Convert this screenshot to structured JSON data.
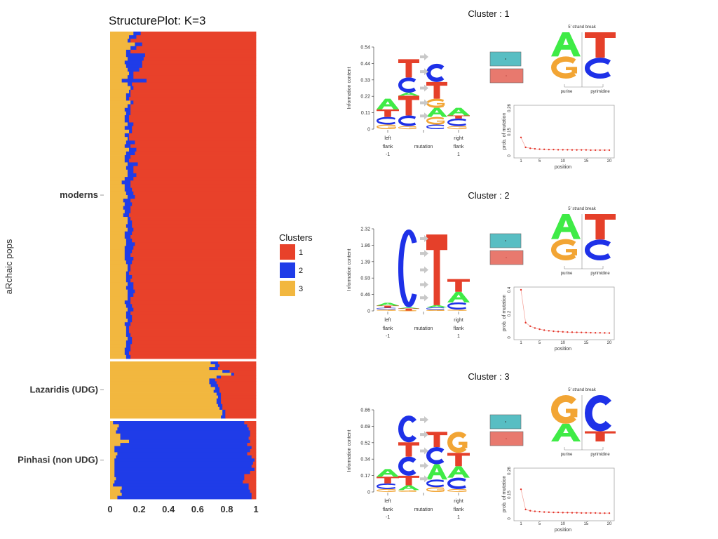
{
  "colors": {
    "c1": "#E8412A",
    "c2": "#1F3CE8",
    "c3": "#F2B73F",
    "teal": "#58BEC3",
    "salmon": "#E8796E",
    "A": "#3FEB46",
    "C": "#1E31E8",
    "G": "#F2A534",
    "T": "#E5402A"
  },
  "structure_plot": {
    "title": "StructurePlot: K=3",
    "y_axis_label": "aRchaic pops",
    "x_ticks": [
      "0",
      "0.2",
      "0.4",
      "0.6",
      "0.8",
      "1"
    ],
    "groups": [
      "moderns",
      "Lazaridis (UDG)",
      "Pinhasi (non UDG)"
    ],
    "legend_title": "Clusters",
    "legend_items": [
      "1",
      "2",
      "3"
    ]
  },
  "chart_data": {
    "type": "stacked_bar",
    "title": "StructurePlot: K=3",
    "ylabel": "aRchaic pops",
    "xlim": [
      0,
      1
    ],
    "series_names": [
      "1",
      "2",
      "3"
    ],
    "groups": [
      {
        "name": "moderns",
        "samples": [
          [
            0.79,
            0.05,
            0.16
          ],
          [
            0.82,
            0.05,
            0.13
          ],
          [
            0.86,
            0.02,
            0.12
          ],
          [
            0.78,
            0.05,
            0.17
          ],
          [
            0.82,
            0.04,
            0.14
          ],
          [
            0.86,
            0.03,
            0.11
          ],
          [
            0.76,
            0.13,
            0.11
          ],
          [
            0.77,
            0.11,
            0.12
          ],
          [
            0.78,
            0.12,
            0.1
          ],
          [
            0.78,
            0.11,
            0.11
          ],
          [
            0.8,
            0.08,
            0.12
          ],
          [
            0.84,
            0.03,
            0.13
          ],
          [
            0.84,
            0.04,
            0.12
          ],
          [
            0.75,
            0.17,
            0.08
          ],
          [
            0.85,
            0.03,
            0.12
          ],
          [
            0.84,
            0.02,
            0.14
          ],
          [
            0.86,
            0.01,
            0.13
          ],
          [
            0.86,
            0.03,
            0.11
          ],
          [
            0.87,
            0.02,
            0.11
          ],
          [
            0.84,
            0.02,
            0.14
          ],
          [
            0.86,
            0.02,
            0.12
          ],
          [
            0.86,
            0.04,
            0.1
          ],
          [
            0.86,
            0.03,
            0.11
          ],
          [
            0.87,
            0.03,
            0.1
          ],
          [
            0.87,
            0.03,
            0.1
          ],
          [
            0.84,
            0.04,
            0.12
          ],
          [
            0.85,
            0.05,
            0.1
          ],
          [
            0.85,
            0.02,
            0.13
          ],
          [
            0.87,
            0.03,
            0.1
          ],
          [
            0.87,
            0.01,
            0.12
          ],
          [
            0.83,
            0.06,
            0.11
          ],
          [
            0.86,
            0.04,
            0.1
          ],
          [
            0.82,
            0.05,
            0.13
          ],
          [
            0.83,
            0.06,
            0.11
          ],
          [
            0.86,
            0.04,
            0.1
          ],
          [
            0.87,
            0.03,
            0.1
          ],
          [
            0.81,
            0.07,
            0.12
          ],
          [
            0.84,
            0.05,
            0.11
          ],
          [
            0.84,
            0.04,
            0.12
          ],
          [
            0.82,
            0.06,
            0.12
          ],
          [
            0.84,
            0.06,
            0.1
          ],
          [
            0.86,
            0.06,
            0.08
          ],
          [
            0.86,
            0.04,
            0.1
          ],
          [
            0.85,
            0.05,
            0.1
          ],
          [
            0.84,
            0.05,
            0.11
          ],
          [
            0.83,
            0.05,
            0.12
          ],
          [
            0.86,
            0.05,
            0.09
          ],
          [
            0.85,
            0.05,
            0.1
          ],
          [
            0.86,
            0.05,
            0.09
          ],
          [
            0.86,
            0.04,
            0.1
          ],
          [
            0.87,
            0.04,
            0.09
          ],
          [
            0.86,
            0.02,
            0.12
          ],
          [
            0.85,
            0.03,
            0.12
          ],
          [
            0.85,
            0.04,
            0.11
          ],
          [
            0.84,
            0.04,
            0.12
          ],
          [
            0.85,
            0.05,
            0.1
          ],
          [
            0.86,
            0.04,
            0.1
          ],
          [
            0.85,
            0.04,
            0.11
          ],
          [
            0.83,
            0.06,
            0.11
          ],
          [
            0.84,
            0.06,
            0.1
          ],
          [
            0.85,
            0.05,
            0.1
          ],
          [
            0.86,
            0.04,
            0.1
          ],
          [
            0.84,
            0.06,
            0.1
          ],
          [
            0.85,
            0.04,
            0.11
          ],
          [
            0.86,
            0.02,
            0.12
          ],
          [
            0.86,
            0.02,
            0.12
          ],
          [
            0.87,
            0.02,
            0.11
          ],
          [
            0.85,
            0.04,
            0.11
          ],
          [
            0.86,
            0.03,
            0.11
          ],
          [
            0.84,
            0.04,
            0.12
          ],
          [
            0.84,
            0.05,
            0.11
          ],
          [
            0.83,
            0.05,
            0.12
          ],
          [
            0.84,
            0.04,
            0.12
          ],
          [
            0.86,
            0.02,
            0.12
          ],
          [
            0.86,
            0.04,
            0.1
          ],
          [
            0.85,
            0.04,
            0.11
          ],
          [
            0.84,
            0.04,
            0.12
          ],
          [
            0.86,
            0.03,
            0.11
          ],
          [
            0.85,
            0.04,
            0.11
          ],
          [
            0.85,
            0.03,
            0.12
          ],
          [
            0.86,
            0.04,
            0.1
          ],
          [
            0.87,
            0.02,
            0.11
          ],
          [
            0.87,
            0.02,
            0.11
          ],
          [
            0.86,
            0.03,
            0.11
          ],
          [
            0.85,
            0.03,
            0.12
          ],
          [
            0.85,
            0.04,
            0.11
          ],
          [
            0.86,
            0.03,
            0.11
          ],
          [
            0.86,
            0.04,
            0.1
          ],
          [
            0.87,
            0.03,
            0.1
          ],
          [
            0.86,
            0.03,
            0.11
          ]
        ]
      },
      {
        "name": "Lazaridis (UDG)",
        "samples": [
          [
            0.26,
            0.05,
            0.69
          ],
          [
            0.25,
            0.03,
            0.72
          ],
          [
            0.26,
            0.06,
            0.68
          ],
          [
            0.18,
            0.05,
            0.77
          ],
          [
            0.15,
            0.02,
            0.83
          ],
          [
            0.24,
            0.03,
            0.73
          ],
          [
            0.28,
            0.04,
            0.68
          ],
          [
            0.27,
            0.05,
            0.68
          ],
          [
            0.26,
            0.05,
            0.69
          ],
          [
            0.25,
            0.03,
            0.72
          ],
          [
            0.25,
            0.04,
            0.71
          ],
          [
            0.24,
            0.03,
            0.73
          ],
          [
            0.24,
            0.02,
            0.74
          ],
          [
            0.24,
            0.03,
            0.73
          ],
          [
            0.24,
            0.03,
            0.73
          ],
          [
            0.23,
            0.03,
            0.74
          ],
          [
            0.23,
            0.02,
            0.75
          ],
          [
            0.21,
            0.02,
            0.77
          ],
          [
            0.21,
            0.02,
            0.77
          ],
          [
            0.21,
            0.03,
            0.76
          ]
        ]
      },
      {
        "name": "Pinhasi (non UDG)",
        "samples": [
          [
            0.08,
            0.9,
            0.02
          ],
          [
            0.06,
            0.88,
            0.06
          ],
          [
            0.05,
            0.9,
            0.05
          ],
          [
            0.04,
            0.92,
            0.04
          ],
          [
            0.04,
            0.89,
            0.07
          ],
          [
            0.05,
            0.88,
            0.07
          ],
          [
            0.04,
            0.83,
            0.13
          ],
          [
            0.06,
            0.87,
            0.07
          ],
          [
            0.03,
            0.94,
            0.03
          ],
          [
            0.04,
            0.93,
            0.03
          ],
          [
            0.06,
            0.89,
            0.05
          ],
          [
            0.03,
            0.93,
            0.04
          ],
          [
            0.01,
            0.96,
            0.03
          ],
          [
            0.02,
            0.95,
            0.03
          ],
          [
            0.03,
            0.94,
            0.03
          ],
          [
            0.01,
            0.96,
            0.03
          ],
          [
            0.04,
            0.93,
            0.03
          ],
          [
            0.08,
            0.89,
            0.03
          ],
          [
            0.08,
            0.88,
            0.04
          ],
          [
            0.09,
            0.88,
            0.03
          ],
          [
            0.05,
            0.93,
            0.02
          ],
          [
            0.05,
            0.87,
            0.08
          ],
          [
            0.04,
            0.89,
            0.07
          ],
          [
            0.03,
            0.89,
            0.08
          ],
          [
            0.03,
            0.92,
            0.05
          ]
        ]
      }
    ]
  },
  "clusters": [
    {
      "title": "Cluster : 1",
      "logo": {
        "y_axis_label": "Information content",
        "y_ticks": [
          "0",
          "0.11",
          "0.22",
          "0.33",
          "0.44",
          "0.54"
        ],
        "ymax": 0.54,
        "x_labels": {
          "left": "left",
          "left2": "flank",
          "left3": "-1",
          "mid": "mutation",
          "right": "right",
          "right2": "flank",
          "right3": "1"
        },
        "left_stack": [
          [
            "G",
            0.03
          ],
          [
            "C",
            0.05
          ],
          [
            "T",
            0.05
          ],
          [
            "A",
            0.07
          ]
        ],
        "from_stack": [
          [
            "G",
            0.02
          ],
          [
            "C",
            0.07
          ],
          [
            "T",
            0.13
          ],
          [
            "A",
            0.02
          ],
          [
            "C",
            0.1
          ],
          [
            "T",
            0.12
          ]
        ],
        "to_stack": [
          [
            "C",
            0.03
          ],
          [
            "G",
            0.05
          ],
          [
            "A",
            0.06
          ],
          [
            "G",
            0.06
          ],
          [
            "T",
            0.11
          ],
          [
            "C",
            0.12
          ]
        ],
        "right_stack": [
          [
            "G",
            0.02
          ],
          [
            "C",
            0.05
          ],
          [
            "T",
            0.02
          ],
          [
            "A",
            0.05
          ]
        ]
      },
      "strand": {
        "title": "5' strand break",
        "left_top": "A",
        "left_bottom": "G",
        "right_top": "T",
        "right_bottom": "C",
        "left_top_h": 0.52,
        "left_bottom_h": 0.48,
        "right_top_h": 0.55,
        "right_bottom_h": 0.45,
        "purine": "purine",
        "pyrimidine": "pyrimidine"
      },
      "decay": {
        "ylabel": "prob. of mutation",
        "xlabel": "position",
        "x_ticks": [
          "1",
          "5",
          "10",
          "15",
          "20"
        ],
        "y_ticks": [
          "0",
          "0.15",
          "0.26"
        ],
        "ymax": 0.26,
        "values": [
          0.1,
          0.046,
          0.041,
          0.038,
          0.036,
          0.035,
          0.034,
          0.034,
          0.033,
          0.033,
          0.033,
          0.032,
          0.032,
          0.032,
          0.032,
          0.031,
          0.031,
          0.031,
          0.031,
          0.031
        ]
      }
    },
    {
      "title": "Cluster : 2",
      "logo": {
        "y_axis_label": "Information content",
        "y_ticks": [
          "0",
          "0.46",
          "0.93",
          "1.39",
          "1.86",
          "2.32"
        ],
        "ymax": 2.32,
        "x_labels": {
          "left": "left",
          "left2": "flank",
          "left3": "-1",
          "mid": "mutation",
          "right": "right",
          "right2": "flank",
          "right3": "1"
        },
        "left_stack": [
          [
            "G",
            0.04
          ],
          [
            "C",
            0.05
          ],
          [
            "T",
            0.06
          ],
          [
            "A",
            0.08
          ]
        ],
        "from_stack": [
          [
            "G",
            0.01
          ],
          [
            "T",
            0.06
          ],
          [
            "A",
            0.03
          ],
          [
            "C",
            2.2
          ]
        ],
        "to_stack": [
          [
            "G",
            0.03
          ],
          [
            "C",
            0.07
          ],
          [
            "A",
            0.06
          ],
          [
            "T",
            2.0
          ]
        ],
        "right_stack": [
          [
            "G",
            0.04
          ],
          [
            "C",
            0.2
          ],
          [
            "A",
            0.3
          ],
          [
            "T",
            0.36
          ]
        ]
      },
      "strand": {
        "title": "5' strand break",
        "left_top": "A",
        "left_bottom": "G",
        "right_top": "T",
        "right_bottom": "C",
        "left_top_h": 0.54,
        "left_bottom_h": 0.46,
        "right_top_h": 0.55,
        "right_bottom_h": 0.45,
        "purine": "purine",
        "pyrimidine": "pyrimidine"
      },
      "decay": {
        "ylabel": "prob. of mutation",
        "xlabel": "position",
        "x_ticks": [
          "1",
          "5",
          "10",
          "15",
          "20"
        ],
        "y_ticks": [
          "0",
          "0.2",
          "0.4"
        ],
        "ymax": 0.4,
        "values": [
          0.4,
          0.125,
          0.095,
          0.08,
          0.07,
          0.062,
          0.057,
          0.053,
          0.05,
          0.048,
          0.046,
          0.045,
          0.044,
          0.043,
          0.042,
          0.041,
          0.04,
          0.04,
          0.039,
          0.038
        ]
      }
    },
    {
      "title": "Cluster : 3",
      "logo": {
        "y_axis_label": "Information content",
        "y_ticks": [
          "0",
          "0.17",
          "0.34",
          "0.52",
          "0.69",
          "0.86"
        ],
        "ymax": 0.86,
        "x_labels": {
          "left": "left",
          "left2": "flank",
          "left3": "-1",
          "mid": "mutation",
          "right": "right",
          "right2": "flank",
          "right3": "1"
        },
        "left_stack": [
          [
            "G",
            0.03
          ],
          [
            "C",
            0.06
          ],
          [
            "T",
            0.07
          ],
          [
            "A",
            0.08
          ]
        ],
        "from_stack": [
          [
            "G",
            0.02
          ],
          [
            "A",
            0.05
          ],
          [
            "T",
            0.1
          ],
          [
            "C",
            0.2
          ],
          [
            "T",
            0.15
          ],
          [
            "C",
            0.28
          ]
        ],
        "to_stack": [
          [
            "G",
            0.05
          ],
          [
            "C",
            0.08
          ],
          [
            "A",
            0.16
          ],
          [
            "C",
            0.18
          ],
          [
            "T",
            0.16
          ]
        ],
        "right_stack": [
          [
            "G",
            0.03
          ],
          [
            "C",
            0.12
          ],
          [
            "A",
            0.12
          ],
          [
            "T",
            0.14
          ],
          [
            "G",
            0.22
          ]
        ]
      },
      "strand": {
        "title": "5' strand break",
        "left_top": "G",
        "left_bottom": "A",
        "right_top": "C",
        "right_bottom": "T",
        "left_top_h": 0.62,
        "left_bottom_h": 0.38,
        "right_top_h": 0.78,
        "right_bottom_h": 0.22,
        "purine": "purine",
        "pyrimidine": "pyrimidine"
      },
      "decay": {
        "ylabel": "prob. of mutation",
        "xlabel": "position",
        "x_ticks": [
          "1",
          "5",
          "10",
          "15",
          "20"
        ],
        "y_ticks": [
          "0",
          "0.15",
          "0.26"
        ],
        "ymax": 0.26,
        "values": [
          0.16,
          0.05,
          0.043,
          0.04,
          0.038,
          0.036,
          0.035,
          0.034,
          0.034,
          0.033,
          0.033,
          0.032,
          0.032,
          0.031,
          0.031,
          0.031,
          0.031,
          0.03,
          0.03,
          0.03
        ]
      }
    }
  ]
}
